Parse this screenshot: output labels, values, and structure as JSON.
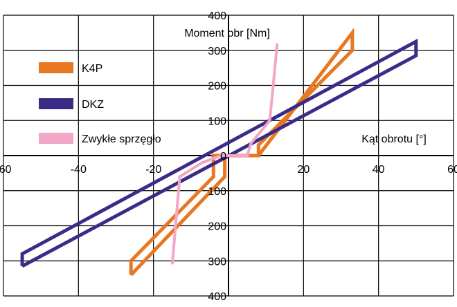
{
  "chart_data": {
    "type": "line",
    "title": "",
    "xlabel": "Kąt obrotu [°]",
    "ylabel": "Moment obr [Nm]",
    "xlim": [
      -60,
      60
    ],
    "ylim": [
      -400,
      400
    ],
    "x_ticks": [
      -60,
      -40,
      -20,
      0,
      20,
      40,
      60
    ],
    "y_ticks": [
      -400,
      -300,
      -200,
      -100,
      0,
      100,
      200,
      300,
      400
    ],
    "x_tick_labels": [
      "-60",
      "-40",
      "-20",
      "0",
      "20",
      "40",
      "60"
    ],
    "y_tick_labels": [
      "400",
      "300",
      "200",
      "100",
      "0",
      "100",
      "200",
      "300",
      "400"
    ],
    "grid": true,
    "legend_position": "top-left",
    "series": [
      {
        "name": "K4P",
        "color": "#e87722",
        "points": [
          [
            -26,
            -340
          ],
          [
            -26,
            -300
          ],
          [
            -4,
            -60
          ],
          [
            -4,
            0
          ],
          [
            8,
            0
          ],
          [
            33,
            350
          ],
          [
            33,
            300
          ],
          [
            8,
            30
          ],
          [
            8,
            0
          ],
          [
            -1,
            0
          ],
          [
            -1,
            -60
          ],
          [
            -26,
            -340
          ]
        ]
      },
      {
        "name": "DKZ",
        "color": "#3a2c86",
        "points": [
          [
            -55,
            -315
          ],
          [
            -55,
            -280
          ],
          [
            50,
            325
          ],
          [
            50,
            285
          ],
          [
            -55,
            -315
          ]
        ]
      },
      {
        "name": "Zwykłe sprzęgło",
        "color": "#f2a6c8",
        "points": [
          [
            -15,
            -310
          ],
          [
            -13,
            -60
          ],
          [
            -7,
            -20
          ],
          [
            -2,
            0
          ],
          [
            -1,
            0
          ],
          [
            5,
            0
          ],
          [
            6,
            35
          ],
          [
            11,
            100
          ],
          [
            13,
            320
          ]
        ]
      }
    ]
  }
}
